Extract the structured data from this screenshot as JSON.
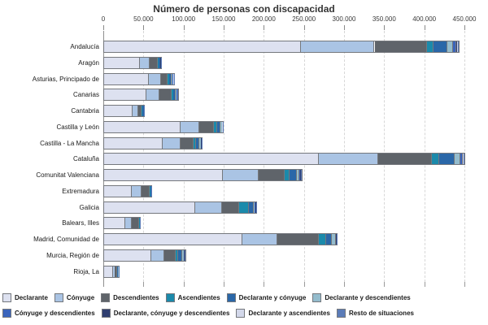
{
  "title": "Número de personas con discapacidad",
  "chart_data": {
    "type": "bar",
    "orientation": "horizontal",
    "stacked": true,
    "title": "Número de personas con discapacidad",
    "xlabel": "",
    "ylabel": "",
    "xlim": [
      0,
      465000
    ],
    "grid": "vertical-dashed",
    "legend_position": "bottom",
    "legend_rows": [
      6,
      4
    ],
    "x_ticks": [
      0,
      50000,
      100000,
      150000,
      200000,
      250000,
      300000,
      350000,
      400000,
      450000
    ],
    "x_tick_labels": [
      "0",
      "50.000",
      "100.000",
      "150.000",
      "200.000",
      "250.000",
      "300.000",
      "350.000",
      "400.000",
      "450.000"
    ],
    "categories": [
      "Andalucía",
      "Aragón",
      "Asturias, Principado de",
      "Canarias",
      "Cantabria",
      "Castilla y León",
      "Castilla - La Mancha",
      "Cataluña",
      "Comunitat Valenciana",
      "Extremadura",
      "Galicia",
      "Balears, Illes",
      "Madrid, Comunidad de",
      "Murcia, Región de",
      "Rioja, La"
    ],
    "series": [
      {
        "name": "Declarante",
        "color": "#dde1f0",
        "values": [
          245000,
          44500,
          55500,
          52500,
          35000,
          95000,
          73000,
          268000,
          148000,
          34500,
          113500,
          26500,
          172000,
          58500,
          11000
        ]
      },
      {
        "name": "Cónyuge",
        "color": "#aac4e4",
        "values": [
          92000,
          12000,
          15000,
          16000,
          8000,
          24000,
          22000,
          73500,
          45000,
          12000,
          33000,
          7500,
          43500,
          17000,
          2300
        ]
      },
      {
        "name": "Descendientes",
        "color": "#5f646a",
        "values": [
          65000,
          10000,
          9000,
          15500,
          4000,
          18000,
          16000,
          67000,
          31500,
          10000,
          22000,
          10000,
          52500,
          13500,
          2700
        ]
      },
      {
        "name": "Ascendientes",
        "color": "#1b8aab",
        "values": [
          8000,
          1000,
          2000,
          2500,
          1000,
          3500,
          3500,
          9000,
          6500,
          800,
          11500,
          300,
          8500,
          3500,
          600
        ]
      },
      {
        "name": "Declarante y cónyuge",
        "color": "#2a67a8",
        "values": [
          18000,
          2000,
          3000,
          3000,
          1200,
          4500,
          4500,
          19000,
          9000,
          1000,
          6000,
          300,
          7000,
          5000,
          1000
        ]
      },
      {
        "name": "Declarante y descendientes",
        "color": "#94bccd",
        "values": [
          7000,
          500,
          1000,
          1000,
          300,
          1500,
          1500,
          7000,
          3000,
          300,
          2000,
          200,
          5000,
          1500,
          300
        ]
      },
      {
        "name": "Cónyuge y descendientes",
        "color": "#3a64bc",
        "values": [
          3500,
          400,
          600,
          600,
          200,
          600,
          600,
          3000,
          1500,
          200,
          800,
          100,
          600,
          800,
          100
        ]
      },
      {
        "name": "Declarante, cónyuge y descendientes",
        "color": "#2f3e70",
        "values": [
          1000,
          200,
          300,
          300,
          100,
          300,
          300,
          800,
          500,
          100,
          400,
          50,
          300,
          400,
          50
        ]
      },
      {
        "name": "Declarante y ascendientes",
        "color": "#d3d8ea",
        "values": [
          1000,
          200,
          300,
          300,
          100,
          300,
          300,
          800,
          500,
          50,
          400,
          50,
          300,
          400,
          50
        ]
      },
      {
        "name": "Resto de situaciones",
        "color": "#5b7cb8",
        "values": [
          1500,
          200,
          300,
          300,
          100,
          300,
          300,
          900,
          500,
          50,
          400,
          50,
          300,
          400,
          50
        ]
      }
    ]
  }
}
